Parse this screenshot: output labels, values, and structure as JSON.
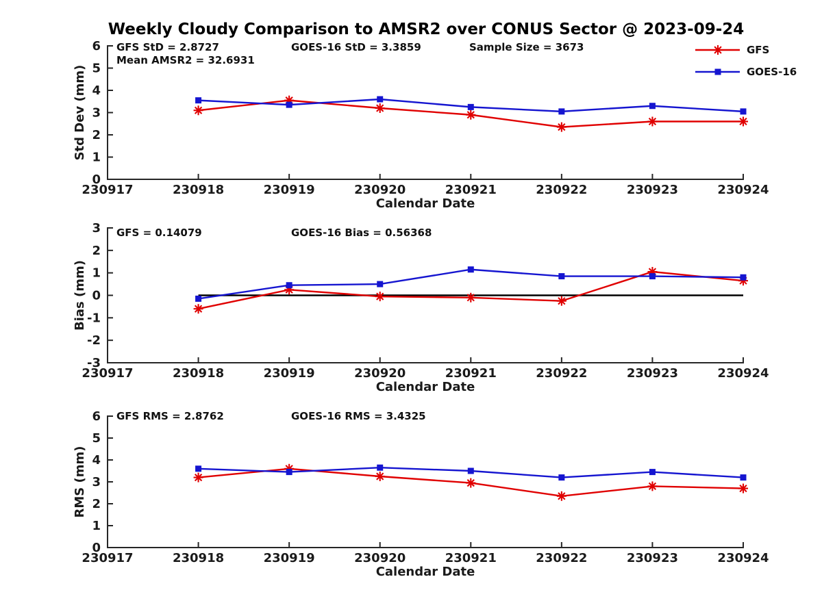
{
  "page": {
    "title": "Weekly Cloudy Comparison to AMSR2 over CONUS Sector @ 2023-09-24"
  },
  "colors": {
    "gfs": "#e00000",
    "goes16": "#1515d0",
    "axis": "#262626",
    "text": "#111111",
    "zero_line": "#000000"
  },
  "legend": {
    "position": "top-right",
    "items": [
      {
        "label": "GFS",
        "marker": "asterisk",
        "color": "#e00000"
      },
      {
        "label": "GOES-16",
        "marker": "square",
        "color": "#1515d0"
      }
    ]
  },
  "chart_data": [
    {
      "id": "stddev",
      "type": "line",
      "ylabel": "Std Dev (mm)",
      "xlabel": "Calendar Date",
      "ylim": [
        0,
        6
      ],
      "yticks": [
        0,
        1,
        2,
        3,
        4,
        5,
        6
      ],
      "xticklabels": [
        "230917",
        "230918",
        "230919",
        "230920",
        "230921",
        "230922",
        "230923",
        "230924"
      ],
      "categories": [
        "230918",
        "230919",
        "230920",
        "230921",
        "230922",
        "230923",
        "230924"
      ],
      "grid": false,
      "zero_line": false,
      "series": [
        {
          "name": "GFS",
          "marker": "asterisk",
          "color": "#e00000",
          "values": [
            3.1,
            3.55,
            3.2,
            2.9,
            2.35,
            2.6,
            2.6
          ]
        },
        {
          "name": "GOES-16",
          "marker": "square",
          "color": "#1515d0",
          "values": [
            3.55,
            3.35,
            3.6,
            3.25,
            3.05,
            3.3,
            3.05
          ]
        }
      ],
      "annotations": [
        {
          "text": "GFS StD = 2.8727",
          "col": 0,
          "row": 0
        },
        {
          "text": "Mean AMSR2 = 32.6931",
          "col": 0,
          "row": 1
        },
        {
          "text": "GOES-16 StD = 3.3859",
          "col": 1,
          "row": 0
        },
        {
          "text": "Sample Size = 3673",
          "col": 2,
          "row": 0
        }
      ]
    },
    {
      "id": "bias",
      "type": "line",
      "ylabel": "Bias (mm)",
      "xlabel": "Calendar Date",
      "ylim": [
        -3,
        3
      ],
      "yticks": [
        -3,
        -2,
        -1,
        0,
        1,
        2,
        3
      ],
      "xticklabels": [
        "230917",
        "230918",
        "230919",
        "230920",
        "230921",
        "230922",
        "230923",
        "230924"
      ],
      "categories": [
        "230918",
        "230919",
        "230920",
        "230921",
        "230922",
        "230923",
        "230924"
      ],
      "grid": false,
      "zero_line": true,
      "series": [
        {
          "name": "GFS",
          "marker": "asterisk",
          "color": "#e00000",
          "values": [
            -0.6,
            0.25,
            -0.05,
            -0.1,
            -0.25,
            1.05,
            0.65
          ]
        },
        {
          "name": "GOES-16",
          "marker": "square",
          "color": "#1515d0",
          "values": [
            -0.15,
            0.45,
            0.5,
            1.15,
            0.85,
            0.85,
            0.8
          ]
        }
      ],
      "annotations": [
        {
          "text": "GFS = 0.14079",
          "col": 0,
          "row": 0
        },
        {
          "text": "GOES-16 Bias  = 0.56368",
          "col": 1,
          "row": 0
        }
      ]
    },
    {
      "id": "rms",
      "type": "line",
      "ylabel": "RMS (mm)",
      "xlabel": "Calendar Date",
      "ylim": [
        0,
        6
      ],
      "yticks": [
        0,
        1,
        2,
        3,
        4,
        5,
        6
      ],
      "xticklabels": [
        "230917",
        "230918",
        "230919",
        "230920",
        "230921",
        "230922",
        "230923",
        "230924"
      ],
      "categories": [
        "230918",
        "230919",
        "230920",
        "230921",
        "230922",
        "230923",
        "230924"
      ],
      "grid": false,
      "zero_line": false,
      "series": [
        {
          "name": "GFS",
          "marker": "asterisk",
          "color": "#e00000",
          "values": [
            3.2,
            3.6,
            3.25,
            2.95,
            2.35,
            2.8,
            2.7
          ]
        },
        {
          "name": "GOES-16",
          "marker": "square",
          "color": "#1515d0",
          "values": [
            3.6,
            3.45,
            3.65,
            3.5,
            3.2,
            3.45,
            3.2
          ]
        }
      ],
      "annotations": [
        {
          "text": "GFS RMS = 2.8762",
          "col": 0,
          "row": 0
        },
        {
          "text": "GOES-16 RMS = 3.4325",
          "col": 1,
          "row": 0
        }
      ]
    }
  ]
}
